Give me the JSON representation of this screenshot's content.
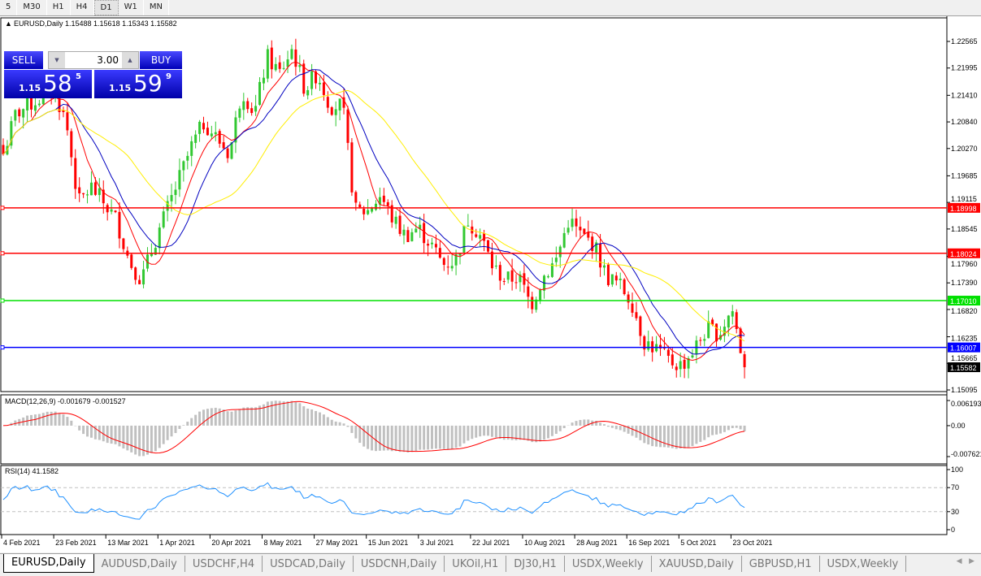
{
  "toolbar": {
    "timeframes": [
      "5",
      "M30",
      "H1",
      "H4",
      "D1",
      "W1",
      "MN"
    ],
    "selected": "D1"
  },
  "chart": {
    "header": "EURUSD,Daily  1.15488 1.15618 1.15343 1.15582",
    "trade": {
      "sell_label": "SELL",
      "buy_label": "BUY",
      "lot": "3.00",
      "sell_prefix": "1.15",
      "sell_big": "58",
      "sell_sup": "5",
      "buy_prefix": "1.15",
      "buy_big": "59",
      "buy_sup": "9"
    },
    "price_ticks": [
      "1.22565",
      "1.21995",
      "1.21410",
      "1.20840",
      "1.20270",
      "1.19685",
      "1.19115",
      "1.18545",
      "1.17960",
      "1.17390",
      "1.16820",
      "1.16235",
      "1.15665",
      "1.15095"
    ],
    "hlines": [
      {
        "price": 1.18998,
        "label": "1.18998",
        "color": "#ff0000"
      },
      {
        "price": 1.18024,
        "label": "1.18024",
        "color": "#ff0000"
      },
      {
        "price": 1.1701,
        "label": "1.17010",
        "color": "#00e000"
      },
      {
        "price": 1.16007,
        "label": "1.16007",
        "color": "#0000ff"
      }
    ],
    "current_price": {
      "price": 1.15582,
      "label": "1.15582"
    },
    "macd": {
      "title": "MACD(12,26,9) -0.001679 -0.001527",
      "ticks": [
        "0.006193",
        "0.00",
        "-0.007621"
      ]
    },
    "rsi": {
      "title": "RSI(14) 41.1582",
      "ticks": [
        "100",
        "70",
        "30",
        "0"
      ]
    },
    "dates": [
      "4 Feb 2021",
      "23 Feb 2021",
      "13 Mar 2021",
      "1 Apr 2021",
      "20 Apr 2021",
      "8 May 2021",
      "27 May 2021",
      "15 Jun 2021",
      "3 Jul 2021",
      "22 Jul 2021",
      "10 Aug 2021",
      "28 Aug 2021",
      "16 Sep 2021",
      "5 Oct 2021",
      "23 Oct 2021"
    ]
  },
  "chart_data": {
    "type": "candlestick",
    "symbol": "EURUSD",
    "timeframe": "Daily",
    "ylim": [
      1.15095,
      1.22565
    ],
    "approx_closes": [
      1.2015,
      1.2102,
      1.2119,
      1.2136,
      1.2154,
      1.2084,
      1.191,
      1.1945,
      1.191,
      1.1875,
      1.1788,
      1.1745,
      1.1823,
      1.1893,
      1.1962,
      1.2032,
      1.2084,
      1.2049,
      1.2015,
      1.2154,
      1.2102,
      1.2223,
      1.2189,
      1.2241,
      1.2154,
      1.2189,
      1.2119,
      1.2119,
      1.1893,
      1.1893,
      1.1927,
      1.1875,
      1.184,
      1.1858,
      1.1823,
      1.1779,
      1.1788,
      1.1875,
      1.184,
      1.1771,
      1.1745,
      1.1753,
      1.1692,
      1.1753,
      1.1788,
      1.1875,
      1.184,
      1.1823,
      1.1753,
      1.1736,
      1.1701,
      1.1614,
      1.1597,
      1.1571,
      1.1562,
      1.1597,
      1.164,
      1.1631,
      1.1684,
      1.1558
    ],
    "up_color": "#32c832",
    "down_color": "#ff0000",
    "ma_colors": [
      "#ff0000",
      "#0000c0",
      "#ffee00"
    ]
  },
  "tabs": [
    "EURUSD,Daily",
    "AUDUSD,Daily",
    "USDCHF,H4",
    "USDCAD,Daily",
    "USDCNH,Daily",
    "UKOil,H1",
    "DJ30,H1",
    "USDX,Weekly",
    "XAUUSD,Daily",
    "GBPUSD,H1",
    "USDX,Weekly"
  ]
}
